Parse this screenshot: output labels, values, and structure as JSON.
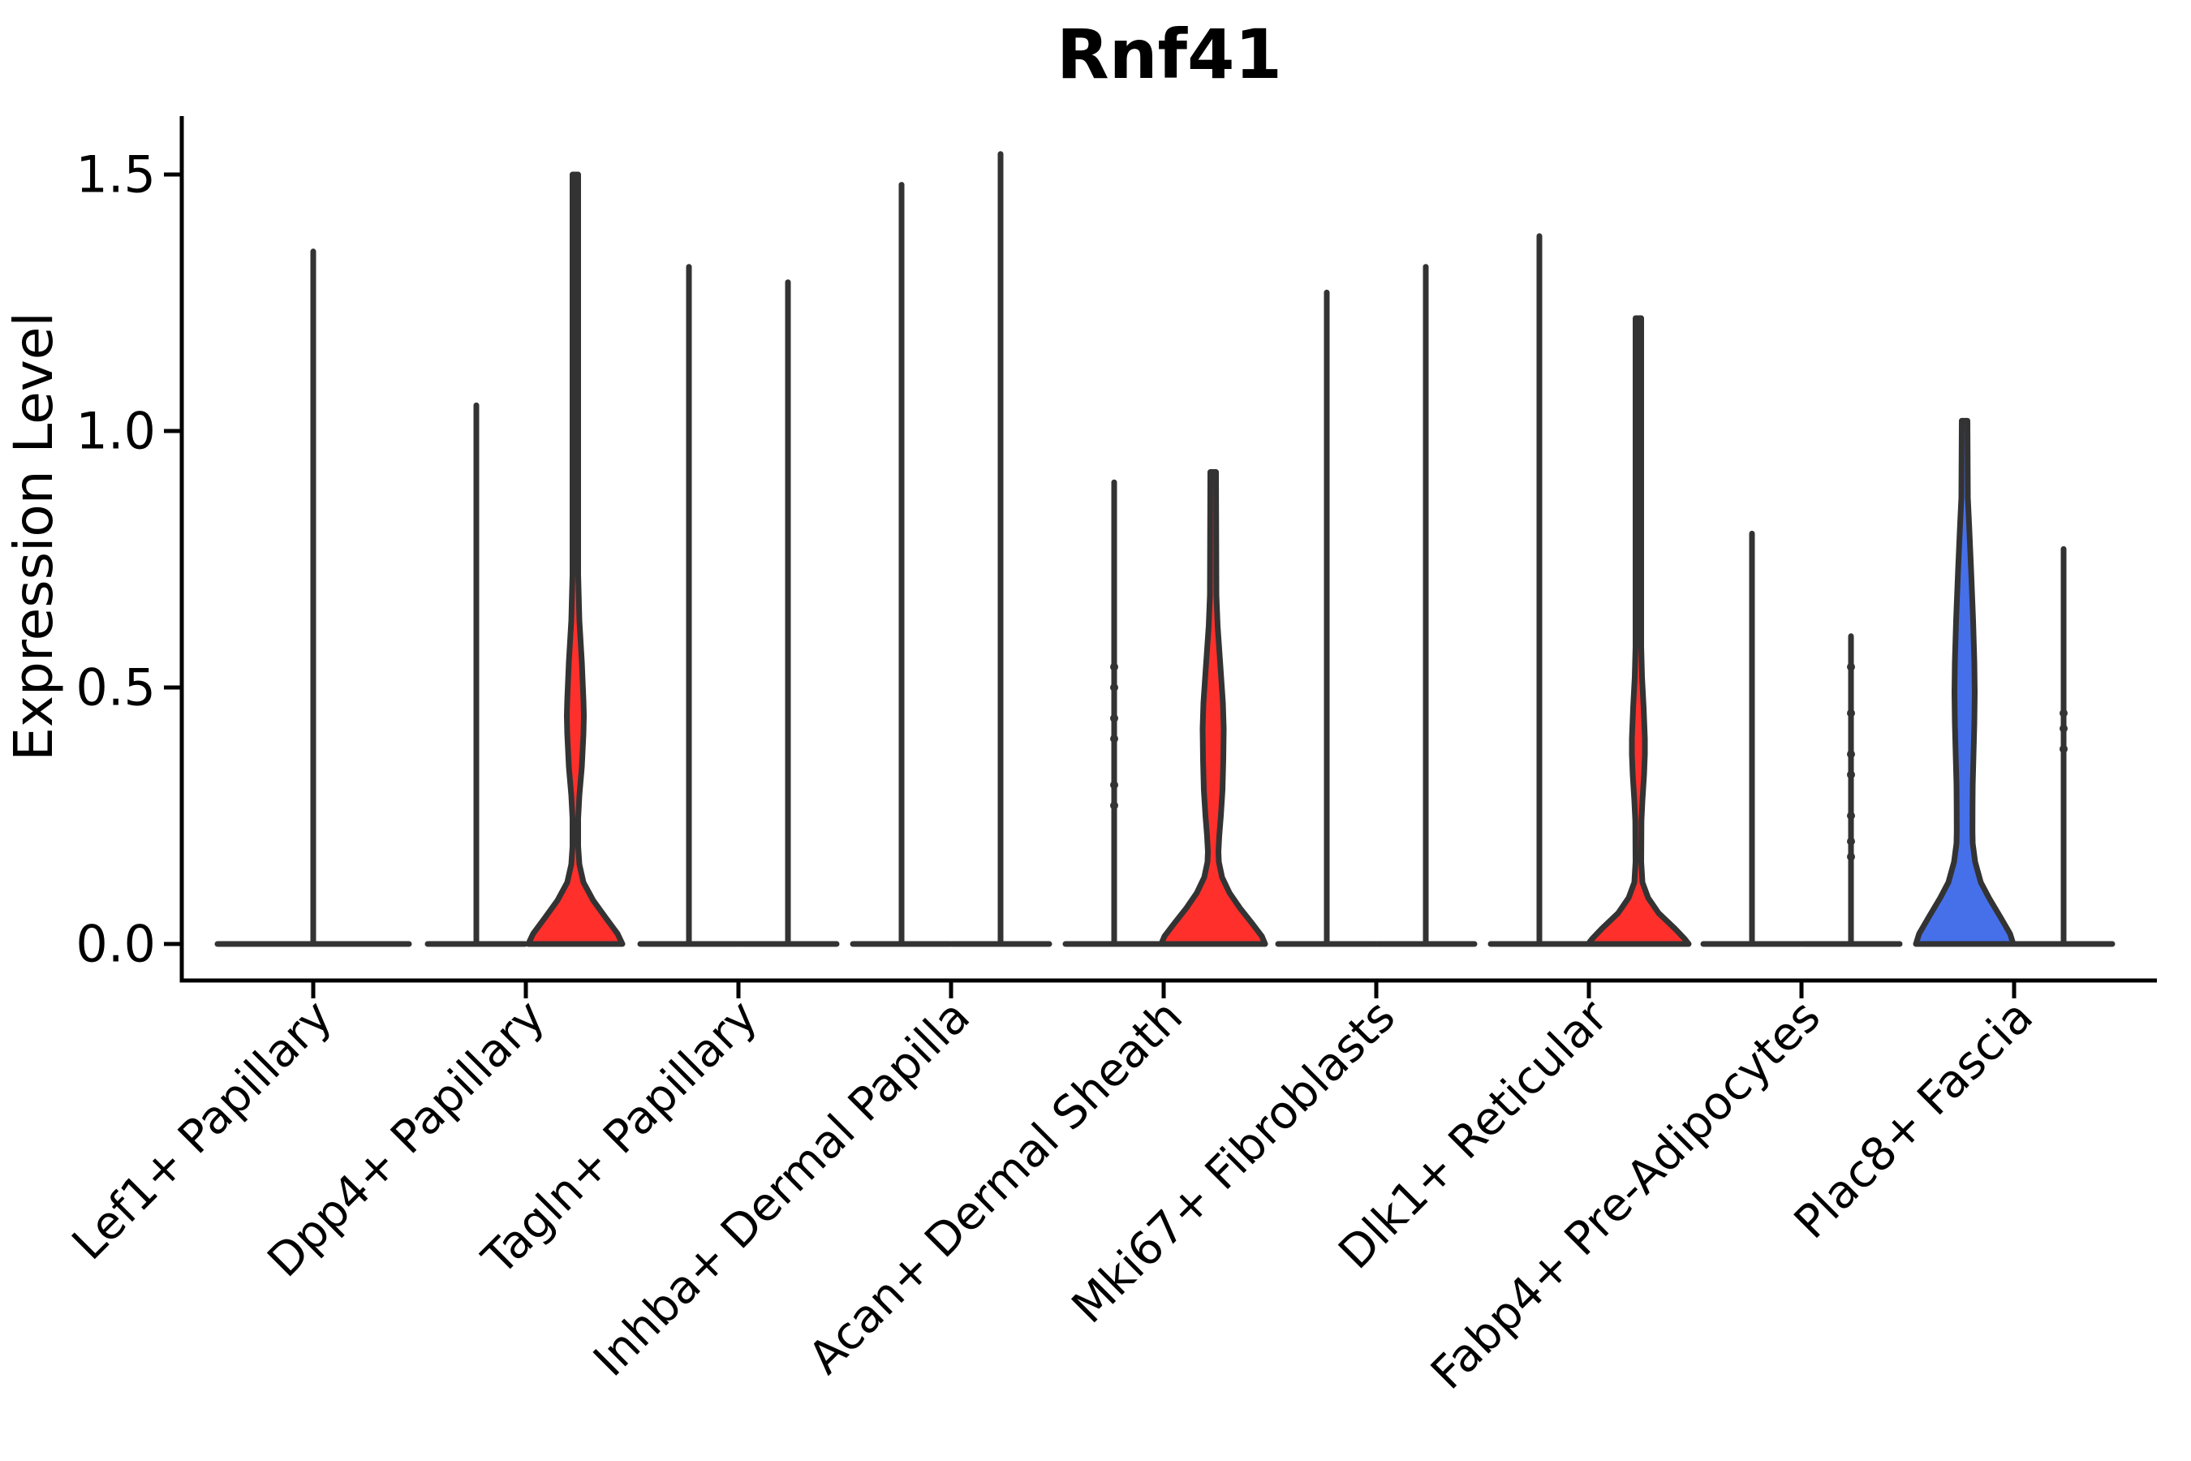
{
  "title": "Rnf41",
  "y_axis": {
    "label": "Expression Level",
    "tick_labels": [
      "1.5",
      "1.0",
      "0.5",
      "0.0"
    ],
    "tick_values": [
      1.5,
      1.0,
      0.5,
      0.0
    ]
  },
  "colors": {
    "red": "#ff302c",
    "blue": "#4670ea",
    "outline": "#333333",
    "axis": "#000000",
    "background": "#ffffff",
    "point": "#333333"
  },
  "chart_data": {
    "type": "violin",
    "title": "Rnf41",
    "xlabel": "",
    "ylabel": "Expression Level",
    "ylim": [
      0,
      1.5
    ],
    "yticks": [
      0.0,
      0.5,
      1.0,
      1.5
    ],
    "grid": false,
    "legend": "none",
    "categories": [
      "Lef1+ Papillary",
      "Dpp4+ Papillary",
      "Tagln+ Papillary",
      "Inhba+ Dermal Papilla",
      "Acan+ Dermal Sheath",
      "Mki67+ Fibroblasts",
      "Dlk1+ Reticular",
      "Fabp4+ Pre-Adipocytes",
      "Plac8+ Fascia"
    ],
    "groups": [
      {
        "category": "Lef1+ Papillary",
        "violins": [
          {
            "side": "center",
            "max_expression": 1.35,
            "style": "spike",
            "fill": null,
            "base_halfwidth": 118,
            "points": []
          }
        ]
      },
      {
        "category": "Dpp4+ Papillary",
        "violins": [
          {
            "side": "left",
            "max_expression": 1.05,
            "style": "spike",
            "fill": null,
            "base_halfwidth": 60,
            "points": []
          },
          {
            "side": "right",
            "max_expression": 1.5,
            "style": "filled",
            "fill": "red",
            "base_halfwidth": 58,
            "profile": [
              [
                1.5,
                3.5
              ],
              [
                0.72,
                3.5
              ],
              [
                0.63,
                5
              ],
              [
                0.55,
                8
              ],
              [
                0.475,
                10
              ],
              [
                0.445,
                10.5
              ],
              [
                0.41,
                10
              ],
              [
                0.345,
                8
              ],
              [
                0.29,
                5
              ],
              [
                0.245,
                3.5
              ],
              [
                0.19,
                3.5
              ],
              [
                0.155,
                5
              ],
              [
                0.12,
                10
              ],
              [
                0.085,
                22
              ],
              [
                0.05,
                38
              ],
              [
                0.02,
                52
              ],
              [
                0,
                58
              ]
            ],
            "points": []
          }
        ]
      },
      {
        "category": "Tagln+ Papillary",
        "violins": [
          {
            "side": "left",
            "max_expression": 1.32,
            "style": "spike",
            "fill": null,
            "base_halfwidth": 60,
            "points": []
          },
          {
            "side": "right",
            "max_expression": 1.29,
            "style": "spike",
            "fill": null,
            "base_halfwidth": 60,
            "points": []
          }
        ]
      },
      {
        "category": "Inhba+ Dermal Papilla",
        "violins": [
          {
            "side": "left",
            "max_expression": 1.48,
            "style": "spike",
            "fill": null,
            "base_halfwidth": 60,
            "points": []
          },
          {
            "side": "right",
            "max_expression": 1.54,
            "style": "spike",
            "fill": null,
            "base_halfwidth": 60,
            "points": []
          }
        ]
      },
      {
        "category": "Acan+ Dermal Sheath",
        "violins": [
          {
            "side": "left",
            "max_expression": 0.9,
            "style": "spike",
            "fill": null,
            "base_halfwidth": 60,
            "points": [
              0.54,
              0.5,
              0.44,
              0.4,
              0.31,
              0.27
            ]
          },
          {
            "side": "right",
            "max_expression": 0.92,
            "style": "filled",
            "fill": "red",
            "base_halfwidth": 64,
            "profile": [
              [
                0.92,
                3.5
              ],
              [
                0.68,
                4
              ],
              [
                0.62,
                5.5
              ],
              [
                0.54,
                9
              ],
              [
                0.47,
                12
              ],
              [
                0.42,
                13
              ],
              [
                0.36,
                12.5
              ],
              [
                0.3,
                11.5
              ],
              [
                0.25,
                9.5
              ],
              [
                0.21,
                7.5
              ],
              [
                0.18,
                6.5
              ],
              [
                0.16,
                7
              ],
              [
                0.13,
                11
              ],
              [
                0.1,
                20
              ],
              [
                0.07,
                33
              ],
              [
                0.04,
                48
              ],
              [
                0.015,
                60
              ],
              [
                0,
                64
              ]
            ],
            "points": []
          }
        ]
      },
      {
        "category": "Mki67+ Fibroblasts",
        "violins": [
          {
            "side": "left",
            "max_expression": 1.27,
            "style": "spike",
            "fill": null,
            "base_halfwidth": 60,
            "points": []
          },
          {
            "side": "right",
            "max_expression": 1.32,
            "style": "spike",
            "fill": null,
            "base_halfwidth": 60,
            "points": []
          }
        ]
      },
      {
        "category": "Dlk1+ Reticular",
        "violins": [
          {
            "side": "left",
            "max_expression": 1.38,
            "style": "spike",
            "fill": null,
            "base_halfwidth": 60,
            "points": []
          },
          {
            "side": "right",
            "max_expression": 1.22,
            "style": "filled",
            "fill": "red",
            "base_halfwidth": 62,
            "profile": [
              [
                1.22,
                3.5
              ],
              [
                0.58,
                3.5
              ],
              [
                0.52,
                4.5
              ],
              [
                0.46,
                6.5
              ],
              [
                0.4,
                8
              ],
              [
                0.37,
                8
              ],
              [
                0.33,
                7
              ],
              [
                0.28,
                5
              ],
              [
                0.24,
                3.8
              ],
              [
                0.16,
                3.5
              ],
              [
                0.12,
                5
              ],
              [
                0.09,
                12
              ],
              [
                0.06,
                25
              ],
              [
                0.03,
                45
              ],
              [
                0.01,
                57
              ],
              [
                0,
                62
              ]
            ],
            "points": []
          }
        ]
      },
      {
        "category": "Fabp4+ Pre-Adipocytes",
        "violins": [
          {
            "side": "left",
            "max_expression": 0.8,
            "style": "spike",
            "fill": null,
            "base_halfwidth": 60,
            "points": []
          },
          {
            "side": "right",
            "max_expression": 0.6,
            "style": "spike",
            "fill": null,
            "base_halfwidth": 60,
            "points": [
              0.54,
              0.45,
              0.37,
              0.33,
              0.25,
              0.2,
              0.17
            ]
          }
        ]
      },
      {
        "category": "Plac8+ Fascia",
        "violins": [
          {
            "side": "left",
            "max_expression": 1.02,
            "style": "filled",
            "fill": "blue",
            "base_halfwidth": 60,
            "profile": [
              [
                1.02,
                3.5
              ],
              [
                0.87,
                4
              ],
              [
                0.82,
                5.5
              ],
              [
                0.73,
                8
              ],
              [
                0.63,
                10.5
              ],
              [
                0.55,
                12
              ],
              [
                0.49,
                12.5
              ],
              [
                0.43,
                12
              ],
              [
                0.37,
                11
              ],
              [
                0.31,
                10
              ],
              [
                0.27,
                9.8
              ],
              [
                0.22,
                9.7
              ],
              [
                0.196,
                10
              ],
              [
                0.16,
                13
              ],
              [
                0.12,
                20
              ],
              [
                0.09,
                30
              ],
              [
                0.05,
                45
              ],
              [
                0.02,
                56
              ],
              [
                0,
                60
              ]
            ],
            "points": []
          },
          {
            "side": "right",
            "max_expression": 0.77,
            "style": "spike",
            "fill": null,
            "base_halfwidth": 60,
            "points": [
              0.45,
              0.42,
              0.38
            ]
          }
        ]
      }
    ]
  }
}
